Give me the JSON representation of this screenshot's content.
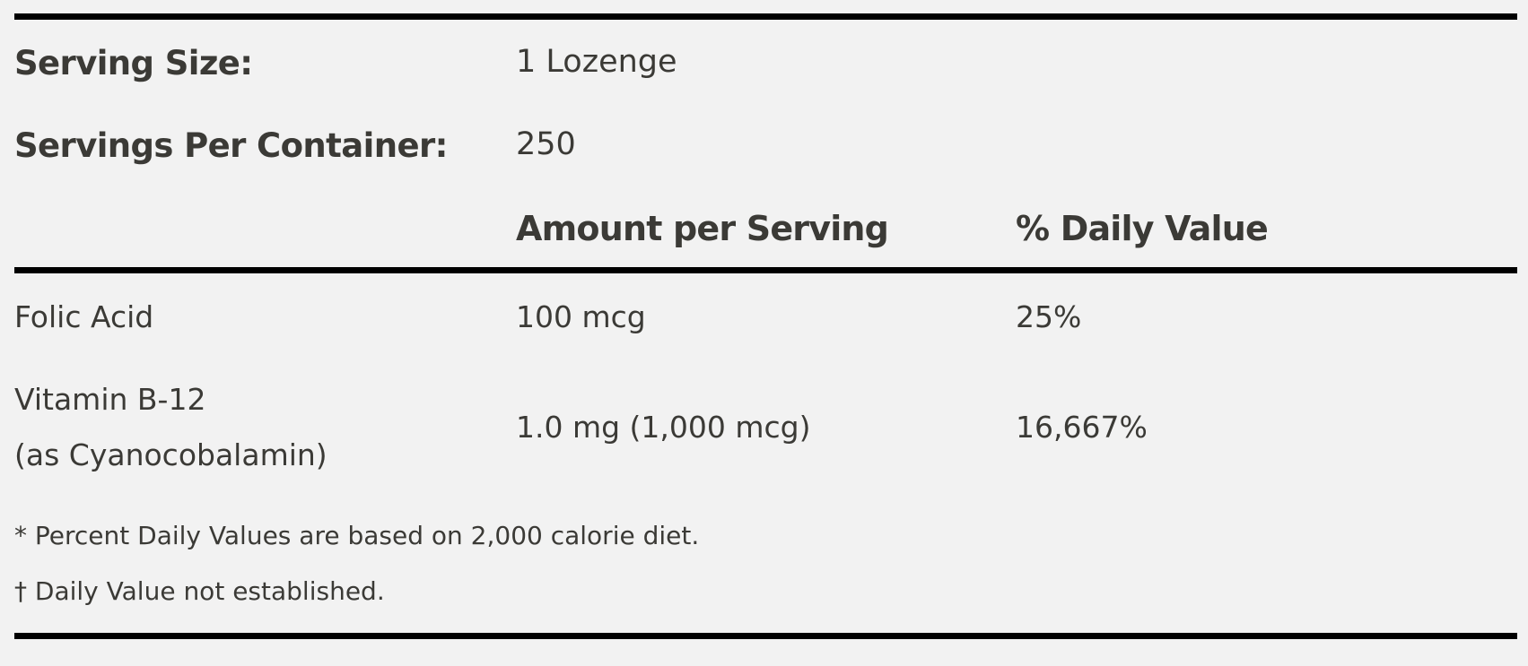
{
  "facts": {
    "serving_size_label": "Serving Size:",
    "serving_size_value": "1 Lozenge",
    "servings_per_container_label": "Servings Per Container:",
    "servings_per_container_value": "250"
  },
  "table": {
    "headers": {
      "amount": "Amount per Serving",
      "daily_value": "% Daily Value"
    },
    "rows": [
      {
        "name": "Folic Acid",
        "name_sub": "",
        "amount": "100 mcg",
        "daily_value": "25%"
      },
      {
        "name": "Vitamin B-12",
        "name_sub": "(as Cyanocobalamin)",
        "amount": "1.0 mg (1,000 mcg)",
        "daily_value": "16,667%"
      }
    ]
  },
  "footnotes": [
    "* Percent Daily Values are based on 2,000 calorie diet.",
    "† Daily Value not established."
  ]
}
